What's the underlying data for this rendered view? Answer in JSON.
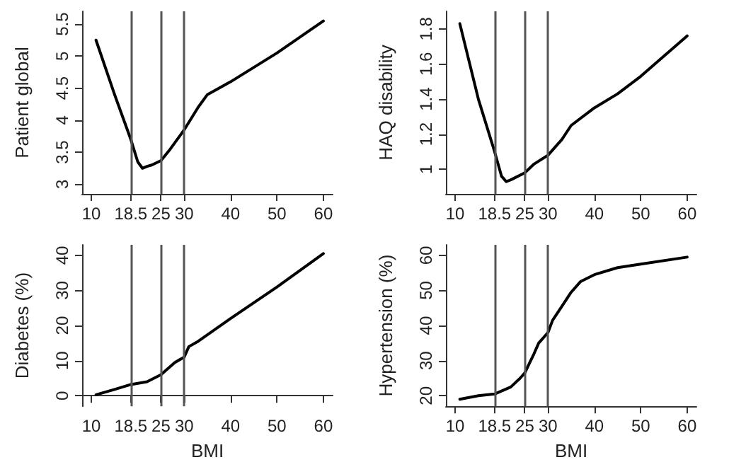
{
  "chart_data": [
    {
      "type": "line",
      "ylabel": "Patient global",
      "xlim": [
        8,
        62
      ],
      "xticks": [
        10,
        18.5,
        25,
        30,
        40,
        50,
        60
      ],
      "ylim": [
        2.85,
        5.7
      ],
      "yticks": [
        3,
        3.5,
        4,
        4.5,
        5,
        5.5
      ],
      "grid": false,
      "marker": "none",
      "line_style": "solid",
      "series": [
        {
          "color": "#000000",
          "x": [
            11,
            15,
            18.5,
            20,
            21,
            22,
            23,
            25,
            27,
            30,
            33,
            35,
            40,
            50,
            60
          ],
          "values": [
            5.25,
            4.4,
            3.7,
            3.35,
            3.25,
            3.28,
            3.3,
            3.37,
            3.55,
            3.85,
            4.2,
            4.4,
            4.6,
            5.05,
            5.55
          ]
        }
      ],
      "ref_lines": [
        {
          "axis": "x",
          "value": 18.5,
          "color": "#555555"
        },
        {
          "axis": "x",
          "value": 25,
          "color": "#555555"
        },
        {
          "axis": "x",
          "value": 30,
          "color": "#555555"
        }
      ]
    },
    {
      "type": "line",
      "ylabel": "HAQ disability",
      "xlim": [
        8,
        62
      ],
      "xticks": [
        10,
        18.5,
        25,
        30,
        40,
        50,
        60
      ],
      "ylim": [
        0.86,
        1.9
      ],
      "yticks": [
        1,
        1.2,
        1.4,
        1.6,
        1.8
      ],
      "grid": false,
      "marker": "none",
      "line_style": "solid",
      "series": [
        {
          "color": "#000000",
          "x": [
            11,
            15,
            18.5,
            20,
            21,
            22,
            25,
            27,
            30,
            33,
            35,
            40,
            45,
            50,
            60
          ],
          "values": [
            1.83,
            1.4,
            1.1,
            0.96,
            0.93,
            0.94,
            0.98,
            1.03,
            1.08,
            1.17,
            1.25,
            1.35,
            1.43,
            1.53,
            1.76
          ]
        }
      ],
      "ref_lines": [
        {
          "axis": "x",
          "value": 18.5,
          "color": "#555555"
        },
        {
          "axis": "x",
          "value": 25,
          "color": "#555555"
        },
        {
          "axis": "x",
          "value": 30,
          "color": "#555555"
        }
      ]
    },
    {
      "type": "line",
      "ylabel": "Diabetes (%)",
      "xlabel": "BMI",
      "xlim": [
        8,
        62
      ],
      "xticks": [
        10,
        18.5,
        25,
        30,
        40,
        50,
        60
      ],
      "ylim": [
        -3,
        43
      ],
      "yticks": [
        0,
        10,
        20,
        30,
        40
      ],
      "grid": false,
      "marker": "none",
      "line_style": "solid",
      "series": [
        {
          "color": "#000000",
          "x": [
            11,
            15,
            18.5,
            22,
            25,
            28,
            30,
            31,
            33,
            40,
            50,
            60
          ],
          "values": [
            0.3,
            1.8,
            3.2,
            4,
            6,
            9.5,
            11,
            14,
            15.5,
            22,
            31,
            40.5
          ]
        }
      ],
      "ref_lines": [
        {
          "axis": "x",
          "value": 18.5,
          "color": "#555555"
        },
        {
          "axis": "x",
          "value": 25,
          "color": "#555555"
        },
        {
          "axis": "x",
          "value": 30,
          "color": "#555555"
        }
      ]
    },
    {
      "type": "line",
      "ylabel": "Hypertension (%)",
      "xlabel": "BMI",
      "xlim": [
        8,
        62
      ],
      "xticks": [
        10,
        18.5,
        25,
        30,
        40,
        50,
        60
      ],
      "ylim": [
        17,
        63
      ],
      "yticks": [
        20,
        30,
        40,
        50,
        60
      ],
      "grid": false,
      "marker": "none",
      "line_style": "solid",
      "series": [
        {
          "color": "#000000",
          "x": [
            11,
            15,
            18.5,
            22,
            24,
            25,
            27,
            28,
            30,
            31,
            33,
            35,
            37,
            40,
            45,
            50,
            60
          ],
          "values": [
            19,
            20,
            20.5,
            22.5,
            25,
            26.5,
            32,
            35,
            38,
            41.5,
            45.5,
            49.5,
            52.5,
            54.5,
            56.5,
            57.5,
            59.5
          ]
        }
      ],
      "ref_lines": [
        {
          "axis": "x",
          "value": 18.5,
          "color": "#555555"
        },
        {
          "axis": "x",
          "value": 25,
          "color": "#555555"
        },
        {
          "axis": "x",
          "value": 30,
          "color": "#555555"
        }
      ]
    }
  ]
}
